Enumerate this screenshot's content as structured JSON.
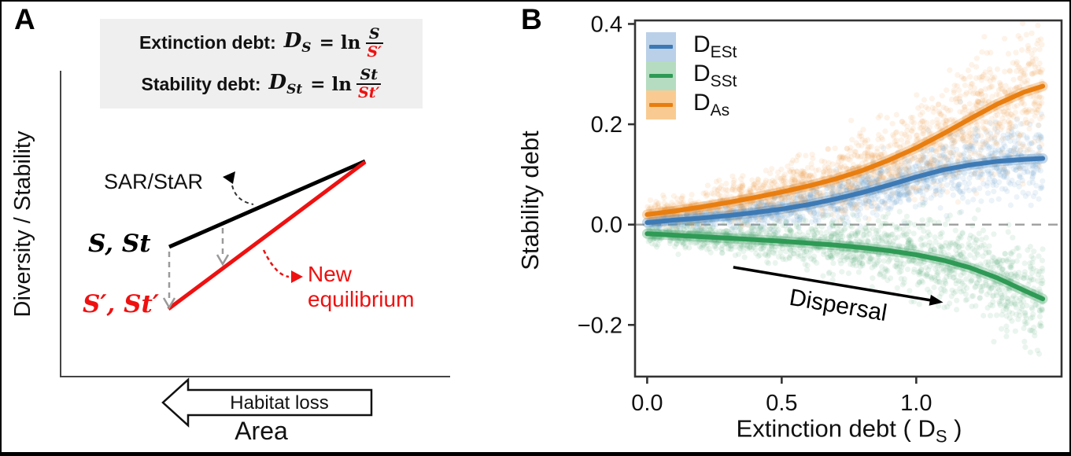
{
  "panel_a": {
    "panel_label": "A",
    "formula_box": {
      "rows": [
        {
          "title": "Extinction debt:",
          "var": "D",
          "var_sub": "S",
          "rel": " = ln",
          "num": "S",
          "den": "S′"
        },
        {
          "title": "Stability debt:",
          "var": "D",
          "var_sub": "St",
          "rel": " = ln",
          "num": "St",
          "den": "St′"
        }
      ]
    },
    "y_axis_label": "Diversity / Stability",
    "x_axis_label": "Area",
    "sar_label": "SAR/StAR",
    "initial_point_label": "S, St",
    "new_point_label": "S′, St′",
    "new_eq_line1": "New",
    "new_eq_line2": "equilibrium",
    "habitat_loss_label": "Habitat loss",
    "colors": {
      "sar_line": "#000000",
      "new_eq_line": "#ee1111",
      "dashed_arrows": "#9a9a9a"
    }
  },
  "panel_b": {
    "panel_label": "B",
    "y_axis_label": "Stability debt",
    "x_axis_title": {
      "prefix": "Extinction debt ( ",
      "var": "D",
      "sub": "S",
      "suffix": " )"
    },
    "dispersal_label": "Dispersal",
    "legend": [
      {
        "main": "D",
        "sub": "ESt",
        "line": "#3d7ab5",
        "fill": "#b9d0e8"
      },
      {
        "main": "D",
        "sub": "SSt",
        "line": "#2e9a55",
        "fill": "#b5dcc0"
      },
      {
        "main": "D",
        "sub": "As",
        "line": "#e87e10",
        "fill": "#f9cb92"
      }
    ]
  },
  "chart_data": {
    "type": "scatter",
    "title": "",
    "xlabel": "Extinction debt ( D_S )",
    "ylabel": "Stability debt",
    "xlim": [
      -0.045,
      1.54
    ],
    "ylim": [
      -0.303,
      0.407
    ],
    "x_ticks": [
      0.0,
      0.5,
      1.0
    ],
    "y_ticks": [
      -0.2,
      0.0,
      0.2,
      0.4
    ],
    "grid": false,
    "legend_position": "top-left",
    "zero_reference_line": 0.0,
    "x": [
      0,
      0.1,
      0.2,
      0.3,
      0.4,
      0.5,
      0.6,
      0.7,
      0.8,
      0.9,
      1.0,
      1.1,
      1.2,
      1.3,
      1.4,
      1.47
    ],
    "series": [
      {
        "name": "DESt",
        "label": "D_ESt",
        "color": "#3d7ab5",
        "point_color": "#6fa0cd",
        "values": [
          0.004,
          0.009,
          0.013,
          0.018,
          0.024,
          0.031,
          0.04,
          0.051,
          0.064,
          0.079,
          0.095,
          0.109,
          0.119,
          0.126,
          0.13,
          0.132
        ]
      },
      {
        "name": "DSSt",
        "label": "D_SSt",
        "color": "#2e9a55",
        "point_color": "#63b184",
        "values": [
          -0.018,
          -0.021,
          -0.024,
          -0.027,
          -0.03,
          -0.033,
          -0.037,
          -0.041,
          -0.046,
          -0.052,
          -0.06,
          -0.071,
          -0.086,
          -0.106,
          -0.131,
          -0.148
        ]
      },
      {
        "name": "DAs",
        "label": "D_As",
        "color": "#e87e10",
        "point_color": "#f3a554",
        "values": [
          0.02,
          0.027,
          0.035,
          0.044,
          0.054,
          0.065,
          0.077,
          0.091,
          0.108,
          0.129,
          0.153,
          0.181,
          0.211,
          0.24,
          0.264,
          0.276
        ]
      }
    ],
    "scatter": {
      "seed": 42,
      "n_per_series": 1600,
      "x_max": 1.47,
      "x_power": 0.9,
      "radius": 3.6,
      "alpha": 0.13,
      "sigma": [
        {
          "base": 0.009,
          "growth": 0.02
        },
        {
          "base": 0.009,
          "growth": 0.026
        },
        {
          "base": 0.012,
          "growth": 0.032
        }
      ]
    },
    "annotation_arrow": {
      "label": "Dispersal",
      "x_start": 0.32,
      "y_start": -0.085,
      "x_end": 1.1,
      "y_end": -0.155
    }
  }
}
